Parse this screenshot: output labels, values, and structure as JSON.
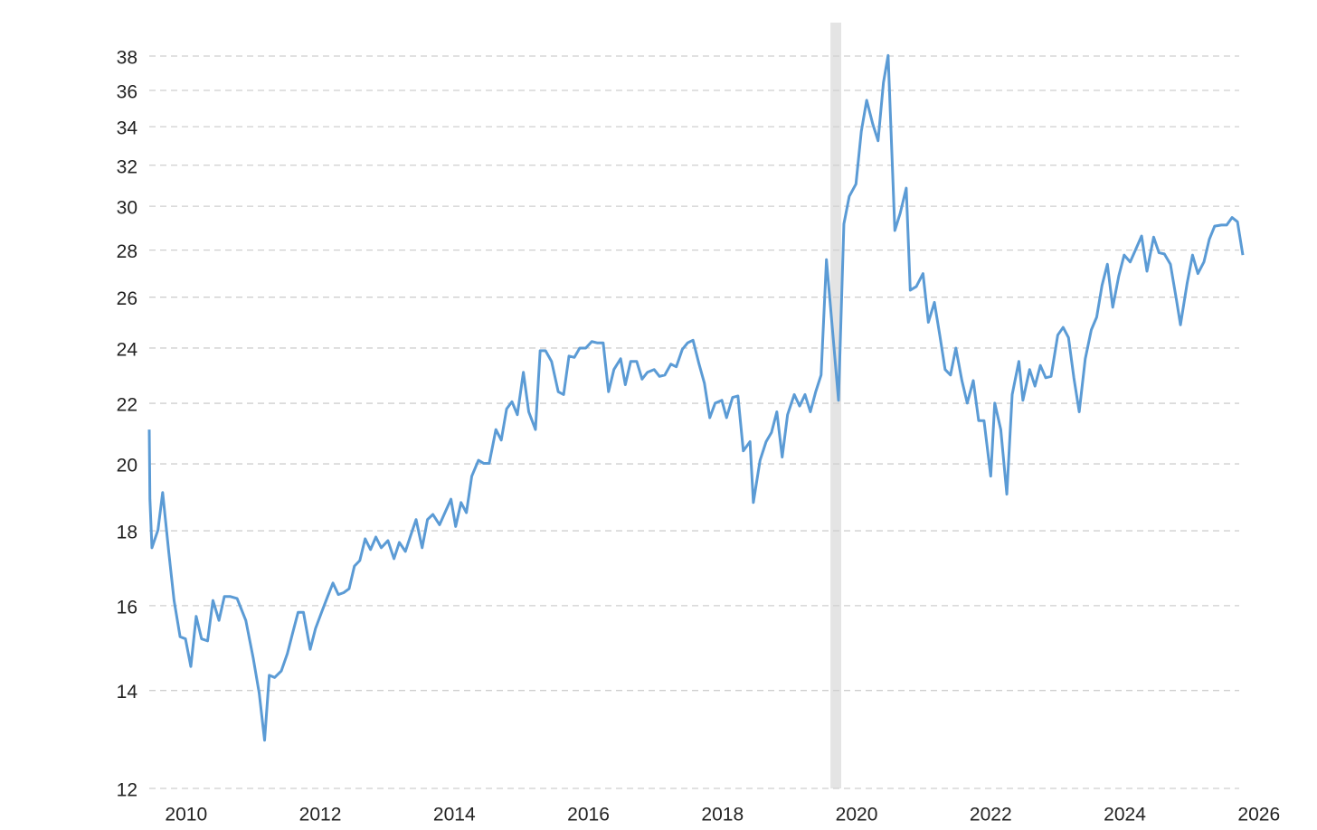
{
  "chart_data": {
    "type": "line",
    "log_y": true,
    "grid": true,
    "color": "#5b9bd5",
    "shade_color": "#e4e4e4",
    "shaded_x": [
      2019.61,
      2019.77
    ],
    "xlim": [
      2009.45,
      2025.76
    ],
    "xticks": [
      2010,
      2012,
      2014,
      2016,
      2018,
      2020,
      2022,
      2024,
      2026
    ],
    "ylim": [
      12,
      38
    ],
    "yticks": [
      12,
      14,
      16,
      18,
      20,
      22,
      24,
      26,
      28,
      30,
      32,
      34,
      36,
      38
    ],
    "x": [
      2009.45,
      2009.46,
      2009.49,
      2009.58,
      2009.65,
      2009.74,
      2009.82,
      2009.91,
      2009.99,
      2010.07,
      2010.15,
      2010.23,
      2010.32,
      2010.4,
      2010.49,
      2010.57,
      2010.66,
      2010.76,
      2010.89,
      2011.0,
      2011.09,
      2011.17,
      2011.24,
      2011.32,
      2011.42,
      2011.51,
      2011.59,
      2011.67,
      2011.75,
      2011.85,
      2011.93,
      2012.02,
      2012.11,
      2012.19,
      2012.27,
      2012.35,
      2012.43,
      2012.51,
      2012.59,
      2012.67,
      2012.75,
      2012.83,
      2012.91,
      2013.01,
      2013.1,
      2013.18,
      2013.27,
      2013.35,
      2013.43,
      2013.52,
      2013.6,
      2013.68,
      2013.78,
      2013.86,
      2013.95,
      2014.02,
      2014.1,
      2014.18,
      2014.26,
      2014.36,
      2014.44,
      2014.52,
      2014.62,
      2014.7,
      2014.78,
      2014.86,
      2014.94,
      2015.03,
      2015.11,
      2015.21,
      2015.28,
      2015.36,
      2015.45,
      2015.55,
      2015.63,
      2015.71,
      2015.79,
      2015.87,
      2015.96,
      2016.05,
      2016.13,
      2016.22,
      2016.3,
      2016.38,
      2016.48,
      2016.55,
      2016.63,
      2016.72,
      2016.8,
      2016.88,
      2016.98,
      2017.06,
      2017.14,
      2017.23,
      2017.31,
      2017.4,
      2017.48,
      2017.56,
      2017.65,
      2017.73,
      2017.81,
      2017.89,
      2017.99,
      2018.06,
      2018.15,
      2018.23,
      2018.31,
      2018.41,
      2018.46,
      2018.56,
      2018.65,
      2018.73,
      2018.81,
      2018.89,
      2018.97,
      2019.07,
      2019.15,
      2019.23,
      2019.31,
      2019.39,
      2019.47,
      2019.55,
      2019.65,
      2019.73,
      2019.81,
      2019.89,
      2019.99,
      2020.07,
      2020.15,
      2020.24,
      2020.32,
      2020.4,
      2020.47,
      2020.57,
      2020.65,
      2020.74,
      2020.8,
      2020.89,
      2020.99,
      2021.07,
      2021.16,
      2021.24,
      2021.32,
      2021.4,
      2021.48,
      2021.57,
      2021.65,
      2021.74,
      2021.82,
      2021.9,
      2022.0,
      2022.06,
      2022.15,
      2022.24,
      2022.32,
      2022.42,
      2022.48,
      2022.58,
      2022.66,
      2022.74,
      2022.82,
      2022.9,
      2023.0,
      2023.08,
      2023.16,
      2023.24,
      2023.32,
      2023.41,
      2023.5,
      2023.58,
      2023.66,
      2023.74,
      2023.82,
      2023.91,
      2023.99,
      2024.08,
      2024.17,
      2024.25,
      2024.33,
      2024.43,
      2024.51,
      2024.59,
      2024.68,
      2024.77,
      2024.83,
      2024.93,
      2025.01,
      2025.09,
      2025.18,
      2025.26,
      2025.34,
      2025.44,
      2025.52,
      2025.6,
      2025.68,
      2025.76
    ],
    "values": [
      21.2,
      19.0,
      17.6,
      18.1,
      19.2,
      17.5,
      16.2,
      15.3,
      15.25,
      14.6,
      15.8,
      15.25,
      15.2,
      16.2,
      15.7,
      16.3,
      16.3,
      16.25,
      15.7,
      14.8,
      14.0,
      13.0,
      14.4,
      14.35,
      14.5,
      14.9,
      15.4,
      15.9,
      15.9,
      15.0,
      15.5,
      15.9,
      16.3,
      16.65,
      16.35,
      16.4,
      16.5,
      17.1,
      17.25,
      17.85,
      17.55,
      17.9,
      17.6,
      17.8,
      17.3,
      17.75,
      17.5,
      17.95,
      18.4,
      17.6,
      18.4,
      18.55,
      18.25,
      18.6,
      19.0,
      18.2,
      18.9,
      18.6,
      19.7,
      20.2,
      20.1,
      20.1,
      21.2,
      20.85,
      21.9,
      22.15,
      21.7,
      23.2,
      21.8,
      21.2,
      24.0,
      24.0,
      23.6,
      22.5,
      22.4,
      23.8,
      23.75,
      24.1,
      24.1,
      24.35,
      24.3,
      24.3,
      22.5,
      23.3,
      23.7,
      22.75,
      23.6,
      23.6,
      22.95,
      23.2,
      23.3,
      23.05,
      23.1,
      23.5,
      23.4,
      24.05,
      24.3,
      24.4,
      23.5,
      22.8,
      21.6,
      22.1,
      22.2,
      21.6,
      22.3,
      22.35,
      20.5,
      20.8,
      18.9,
      20.2,
      20.8,
      21.1,
      21.8,
      20.3,
      21.7,
      22.4,
      22.0,
      22.4,
      21.8,
      22.5,
      23.1,
      27.7,
      24.5,
      22.2,
      29.3,
      30.6,
      31.2,
      33.9,
      35.6,
      34.3,
      33.4,
      36.6,
      38.2,
      29.0,
      29.8,
      31.0,
      26.4,
      26.55,
      27.1,
      25.1,
      25.9,
      24.6,
      23.3,
      23.1,
      24.1,
      22.9,
      22.1,
      22.9,
      21.5,
      21.5,
      19.7,
      22.1,
      21.2,
      19.15,
      22.4,
      23.6,
      22.2,
      23.3,
      22.7,
      23.45,
      23.0,
      23.05,
      24.6,
      24.9,
      24.5,
      23.0,
      21.8,
      23.7,
      24.8,
      25.3,
      26.6,
      27.5,
      25.7,
      27.0,
      27.9,
      27.6,
      28.2,
      28.75,
      27.2,
      28.7,
      28.0,
      27.95,
      27.5,
      26.0,
      25.0,
      26.7,
      27.9,
      27.1,
      27.6,
      28.6,
      29.2,
      29.25,
      29.25,
      29.6,
      29.4,
      27.9
    ]
  }
}
